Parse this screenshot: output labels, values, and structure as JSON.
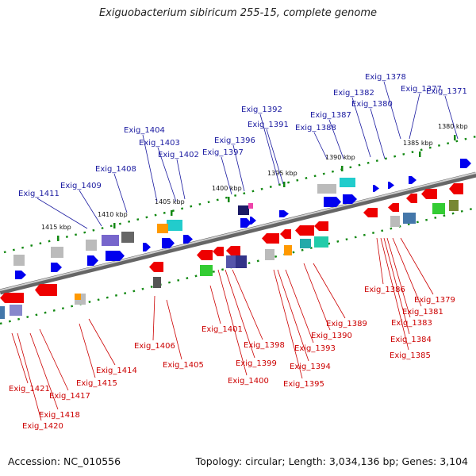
{
  "title": "Exiguobacterium sibiricum 255-15, complete genome",
  "footer": {
    "accession": "Accession: NC_010556",
    "summary": "Topology: circular; Length: 3,034,136 bp; Genes: 3,104"
  },
  "scale_ticks": [
    "1380 kbp",
    "1385 kbp",
    "1390 kbp",
    "1395 kbp",
    "1400 kbp",
    "1405 kbp",
    "1410 kbp",
    "1415 kbp"
  ],
  "top_labels": [
    "Exig_1371",
    "Exig_1377",
    "Exig_1378",
    "Exig_1380",
    "Exig_1382",
    "Exig_1387",
    "Exig_1388",
    "Exig_1391",
    "Exig_1392",
    "Exig_1396",
    "Exig_1397",
    "Exig_1402",
    "Exig_1403",
    "Exig_1404",
    "Exig_1408",
    "Exig_1409",
    "Exig_1411"
  ],
  "bottom_labels": [
    "Exig_1379",
    "Exig_1381",
    "Exig_1383",
    "Exig_1384",
    "Exig_1385",
    "Exig_1386",
    "Exig_1389",
    "Exig_1390",
    "Exig_1393",
    "Exig_1394",
    "Exig_1395",
    "Exig_1398",
    "Exig_1399",
    "Exig_1400",
    "Exig_1401",
    "Exig_1405",
    "Exig_1406",
    "Exig_1414",
    "Exig_1415",
    "Exig_1417",
    "Exig_1418",
    "Exig_1420",
    "Exig_1421"
  ],
  "colors": {
    "forward_gene": "#0000ee",
    "reverse_gene": "#ee0000",
    "scale_dots": "#118811",
    "backbone": "#888888",
    "top_label": "#1a1aa0",
    "bottom_label": "#cc0000"
  }
}
